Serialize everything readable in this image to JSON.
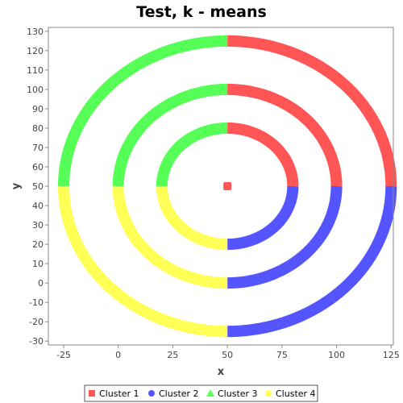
{
  "chart_data": {
    "type": "scatter",
    "title": "Test, k - means",
    "xlabel": "x",
    "ylabel": "y",
    "xlim": [
      -32,
      126
    ],
    "ylim": [
      -32,
      132
    ],
    "xticks": [
      -25,
      0,
      25,
      50,
      75,
      100,
      125
    ],
    "yticks": [
      -30,
      -20,
      -10,
      0,
      10,
      20,
      30,
      40,
      50,
      60,
      70,
      80,
      90,
      100,
      110,
      120,
      130
    ],
    "grid": false,
    "legend_position": "bottom",
    "center": [
      50,
      50
    ],
    "ring_radii": [
      30,
      50,
      75
    ],
    "ring_width": 2.5,
    "series": [
      {
        "name": "Cluster 1",
        "marker": "square",
        "color": "#ff5555",
        "arcs_degrees": [
          [
            0,
            90
          ],
          [
            0,
            90
          ],
          [
            0,
            90
          ]
        ],
        "extra_points": [
          [
            50,
            50
          ]
        ]
      },
      {
        "name": "Cluster 2",
        "marker": "circle",
        "color": "#5555ff",
        "arcs_degrees": [
          [
            270,
            360
          ],
          [
            270,
            360
          ],
          [
            270,
            360
          ]
        ],
        "extra_points": []
      },
      {
        "name": "Cluster 3",
        "marker": "triangle",
        "color": "#55ff55",
        "arcs_degrees": [
          [
            90,
            180
          ],
          [
            90,
            180
          ],
          [
            90,
            180
          ]
        ],
        "extra_points": []
      },
      {
        "name": "Cluster 4",
        "marker": "circle",
        "color": "#ffff55",
        "arcs_degrees": [
          [
            180,
            270
          ],
          [
            180,
            270
          ],
          [
            180,
            270
          ]
        ],
        "extra_points": []
      }
    ]
  }
}
